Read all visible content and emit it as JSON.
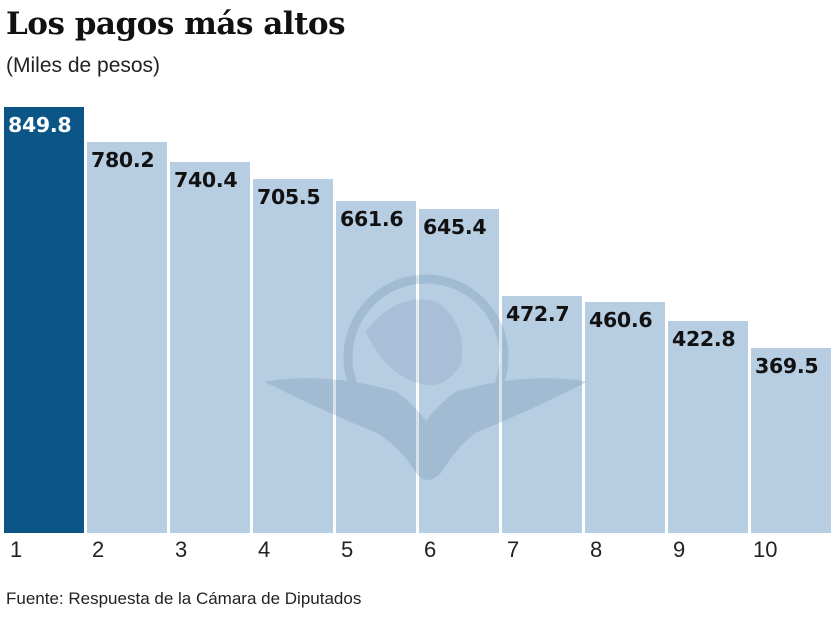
{
  "title": "Los pagos más altos",
  "subtitle": "(Miles de pesos)",
  "source": "Fuente: Respuesta de la Cámara de Diputados",
  "colors": {
    "highlight": "#0b5587",
    "bar": "#b6cde2"
  },
  "labels": [
    "849.8",
    "780.2",
    "740.4",
    "705.5",
    "661.6",
    "645.4",
    "472.7",
    "460.6",
    "422.8",
    "369.5"
  ],
  "ticks": [
    "1",
    "2",
    "3",
    "4",
    "5",
    "6",
    "7",
    "8",
    "9",
    "10"
  ],
  "chart_data": {
    "type": "bar",
    "title": "Los pagos más altos",
    "subtitle": "(Miles de pesos)",
    "categories": [
      "1",
      "2",
      "3",
      "4",
      "5",
      "6",
      "7",
      "8",
      "9",
      "10"
    ],
    "values": [
      849.8,
      780.2,
      740.4,
      705.5,
      661.6,
      645.4,
      472.7,
      460.6,
      422.8,
      369.5
    ],
    "xlabel": "",
    "ylabel": "Miles de pesos",
    "ylim": [
      0,
      850
    ],
    "grid": false,
    "legend": null,
    "highlighted_index": 0,
    "data_labels": true,
    "source": "Fuente: Respuesta de la Cámara de Diputados"
  }
}
